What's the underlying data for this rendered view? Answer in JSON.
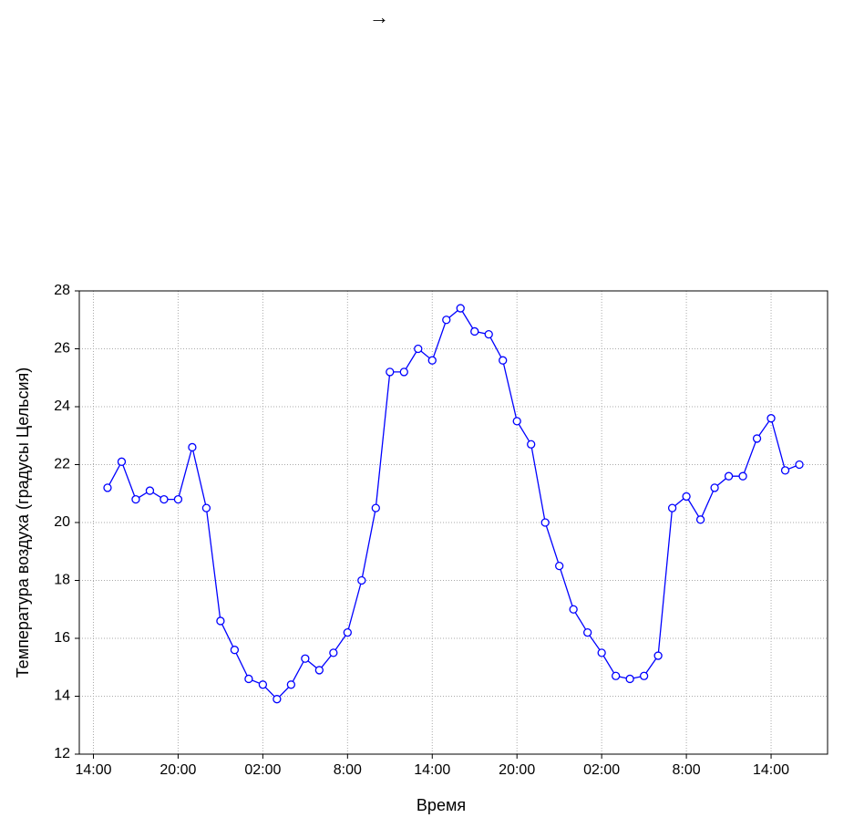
{
  "chart_data": {
    "type": "line",
    "annotation": "→",
    "xlabel": "Время",
    "ylabel": "Температура воздуха (градусы Цельсия)",
    "x": [
      1,
      2,
      3,
      4,
      5,
      6,
      7,
      8,
      9,
      10,
      11,
      12,
      13,
      14,
      15,
      16,
      17,
      18,
      19,
      20,
      21,
      22,
      23,
      24,
      25,
      26,
      27,
      28,
      29,
      30,
      31,
      32,
      33,
      34,
      35,
      36,
      37,
      38,
      39,
      40,
      41,
      42,
      43,
      44,
      45,
      46,
      47,
      48,
      49,
      50
    ],
    "series": [
      {
        "color": "#0000ff",
        "values": [
          21.2,
          22.1,
          20.8,
          21.1,
          20.8,
          20.8,
          22.6,
          20.5,
          16.6,
          15.6,
          14.6,
          14.4,
          13.9,
          14.4,
          15.3,
          14.9,
          15.5,
          16.2,
          18.0,
          20.5,
          25.2,
          25.2,
          26.0,
          25.6,
          27.0,
          27.4,
          26.6,
          26.5,
          25.6,
          23.5,
          22.7,
          20.0,
          18.5,
          17.0,
          16.2,
          15.5,
          14.7,
          14.6,
          14.7,
          15.4,
          20.5,
          20.9,
          20.1,
          21.2,
          21.6,
          21.6,
          22.9,
          23.6,
          21.8,
          22.0
        ]
      }
    ],
    "xlim": [
      -1,
      52
    ],
    "xticks": [
      {
        "value": 0,
        "label": "14:00"
      },
      {
        "value": 6,
        "label": "20:00"
      },
      {
        "value": 12,
        "label": "02:00"
      },
      {
        "value": 18,
        "label": "8:00"
      },
      {
        "value": 24,
        "label": "14:00"
      },
      {
        "value": 30,
        "label": "20:00"
      },
      {
        "value": 36,
        "label": "02:00"
      },
      {
        "value": 42,
        "label": "8:00"
      },
      {
        "value": 48,
        "label": "14:00"
      }
    ],
    "ylim": [
      12,
      28
    ],
    "yticks": [
      12,
      14,
      16,
      18,
      20,
      22,
      24,
      26,
      28
    ],
    "grid": true
  }
}
